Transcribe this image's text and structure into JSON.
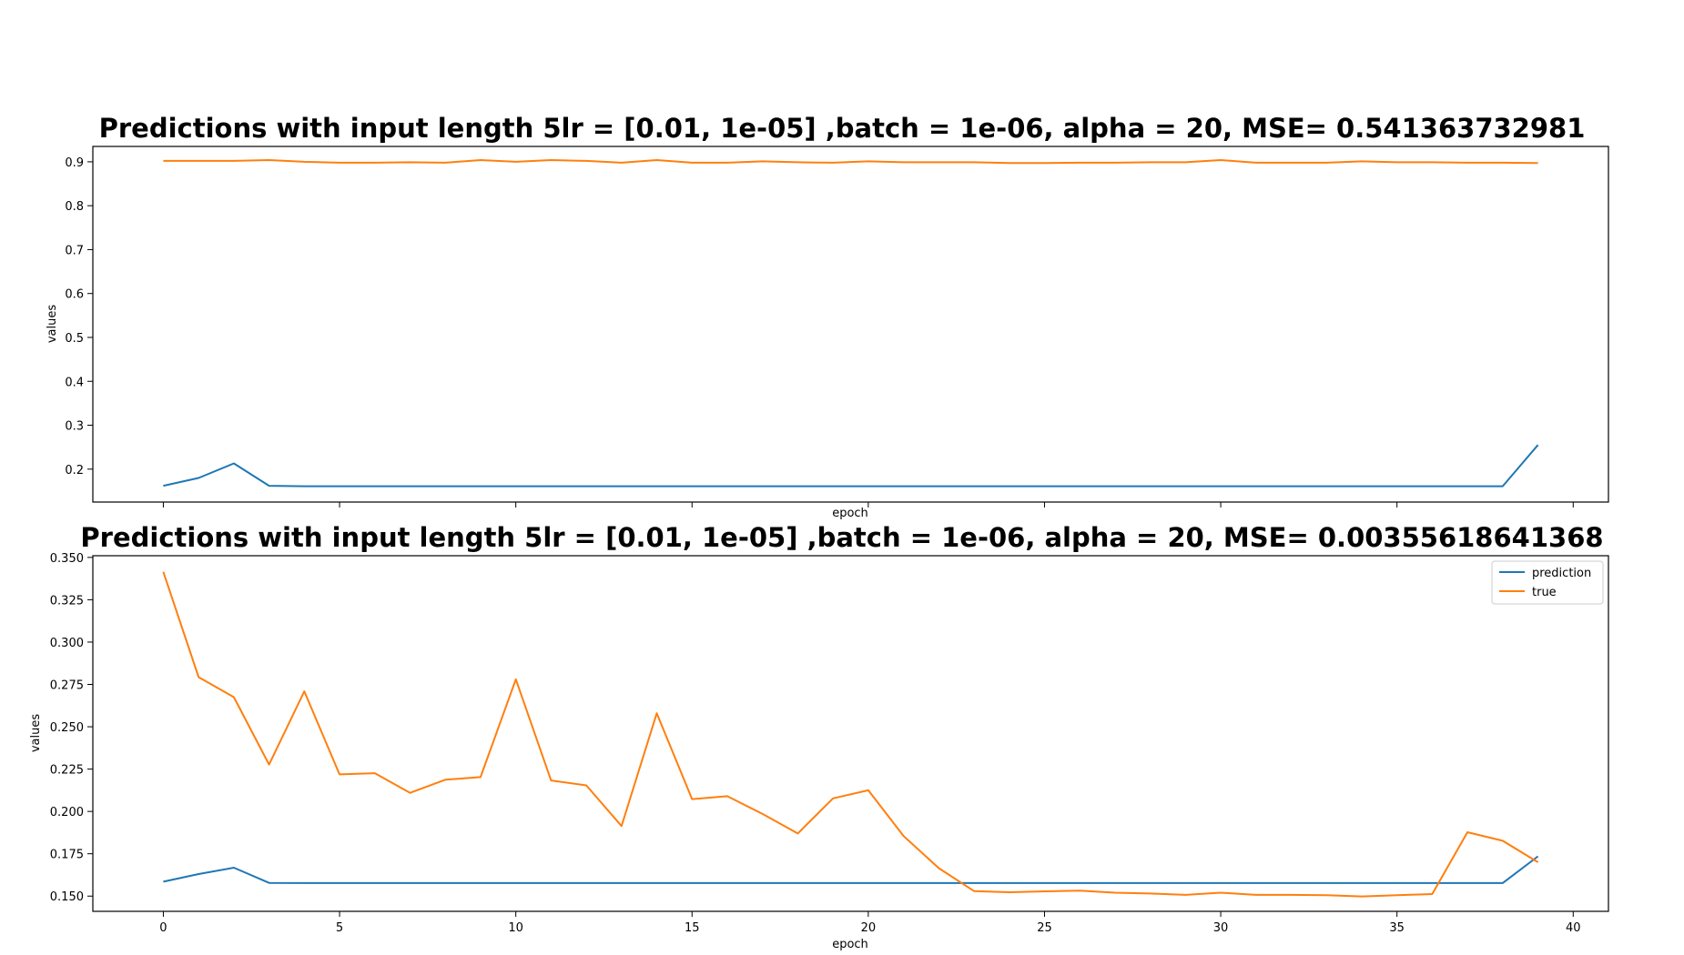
{
  "chart_data": [
    {
      "type": "line",
      "title": "Predictions with input length 5lr = [0.01, 1e-05] ,batch = 1e-06, alpha = 20, MSE= 0.541363732981",
      "xlabel": "epoch",
      "ylabel": "values",
      "xlim": [
        -2,
        41
      ],
      "ylim": [
        0.125,
        0.935
      ],
      "xticks": [
        0,
        5,
        10,
        15,
        20,
        25,
        30,
        35,
        40
      ],
      "xticklabels": [],
      "yticks": [
        0.2,
        0.3,
        0.4,
        0.5,
        0.6,
        0.7,
        0.8,
        0.9
      ],
      "yticklabels": [
        "0.2",
        "0.3",
        "0.4",
        "0.5",
        "0.6",
        "0.7",
        "0.8",
        "0.9"
      ],
      "legend": null,
      "grid": false,
      "x": [
        0,
        1,
        2,
        3,
        4,
        5,
        6,
        7,
        8,
        9,
        10,
        11,
        12,
        13,
        14,
        15,
        16,
        17,
        18,
        19,
        20,
        21,
        22,
        23,
        24,
        25,
        26,
        27,
        28,
        29,
        30,
        31,
        32,
        33,
        34,
        35,
        36,
        37,
        38,
        39
      ],
      "series": [
        {
          "color": "#1f77b4",
          "values": [
            0.162,
            0.18,
            0.213,
            0.162,
            0.161,
            0.161,
            0.161,
            0.161,
            0.161,
            0.161,
            0.161,
            0.161,
            0.161,
            0.161,
            0.161,
            0.161,
            0.161,
            0.161,
            0.161,
            0.161,
            0.161,
            0.161,
            0.161,
            0.161,
            0.161,
            0.161,
            0.161,
            0.161,
            0.161,
            0.161,
            0.161,
            0.161,
            0.161,
            0.161,
            0.161,
            0.161,
            0.161,
            0.161,
            0.161,
            0.255
          ]
        },
        {
          "color": "#ff7f0e",
          "values": [
            0.902,
            0.902,
            0.902,
            0.904,
            0.9,
            0.898,
            0.898,
            0.899,
            0.898,
            0.904,
            0.9,
            0.904,
            0.902,
            0.898,
            0.904,
            0.898,
            0.898,
            0.901,
            0.899,
            0.898,
            0.901,
            0.899,
            0.899,
            0.899,
            0.897,
            0.897,
            0.898,
            0.898,
            0.899,
            0.899,
            0.904,
            0.898,
            0.898,
            0.898,
            0.901,
            0.899,
            0.899,
            0.898,
            0.898,
            0.897
          ]
        }
      ]
    },
    {
      "type": "line",
      "title": "Predictions with input length 5lr = [0.01, 1e-05] ,batch = 1e-06, alpha = 20, MSE= 0.00355618641368",
      "xlabel": "epoch",
      "ylabel": "values",
      "xlim": [
        -2,
        41
      ],
      "ylim": [
        0.141,
        0.351
      ],
      "xticks": [
        0,
        5,
        10,
        15,
        20,
        25,
        30,
        35,
        40
      ],
      "xticklabels": [
        "0",
        "5",
        "10",
        "15",
        "20",
        "25",
        "30",
        "35",
        "40"
      ],
      "yticks": [
        0.15,
        0.175,
        0.2,
        0.225,
        0.25,
        0.275,
        0.3,
        0.325,
        0.35
      ],
      "yticklabels": [
        "0.150",
        "0.175",
        "0.200",
        "0.225",
        "0.250",
        "0.275",
        "0.300",
        "0.325",
        "0.350"
      ],
      "legend": "top-right",
      "grid": false,
      "x": [
        0,
        1,
        2,
        3,
        4,
        5,
        6,
        7,
        8,
        9,
        10,
        11,
        12,
        13,
        14,
        15,
        16,
        17,
        18,
        19,
        20,
        21,
        22,
        23,
        24,
        25,
        26,
        27,
        28,
        29,
        30,
        31,
        32,
        33,
        34,
        35,
        36,
        37,
        38,
        39
      ],
      "series": [
        {
          "name": "prediction",
          "color": "#1f77b4",
          "values": [
            0.1585,
            0.163,
            0.1668,
            0.1578,
            0.1577,
            0.1577,
            0.1577,
            0.1577,
            0.1577,
            0.1577,
            0.1577,
            0.1577,
            0.1577,
            0.1577,
            0.1577,
            0.1577,
            0.1577,
            0.1577,
            0.1577,
            0.1577,
            0.1577,
            0.1577,
            0.1577,
            0.1577,
            0.1577,
            0.1577,
            0.1577,
            0.1577,
            0.1577,
            0.1577,
            0.1577,
            0.1577,
            0.1577,
            0.1577,
            0.1577,
            0.1577,
            0.1577,
            0.1577,
            0.1577,
            0.1735
          ]
        },
        {
          "name": "true",
          "color": "#ff7f0e",
          "values": [
            0.3415,
            0.2793,
            0.2675,
            0.2277,
            0.2709,
            0.2219,
            0.2226,
            0.211,
            0.2187,
            0.2203,
            0.278,
            0.2183,
            0.2154,
            0.1914,
            0.258,
            0.2073,
            0.209,
            0.1985,
            0.187,
            0.2077,
            0.2125,
            0.1855,
            0.1665,
            0.153,
            0.1523,
            0.1528,
            0.1532,
            0.152,
            0.1515,
            0.1507,
            0.152,
            0.1507,
            0.1507,
            0.1505,
            0.1498,
            0.1505,
            0.1512,
            0.1877,
            0.1827,
            0.17
          ]
        }
      ]
    }
  ]
}
